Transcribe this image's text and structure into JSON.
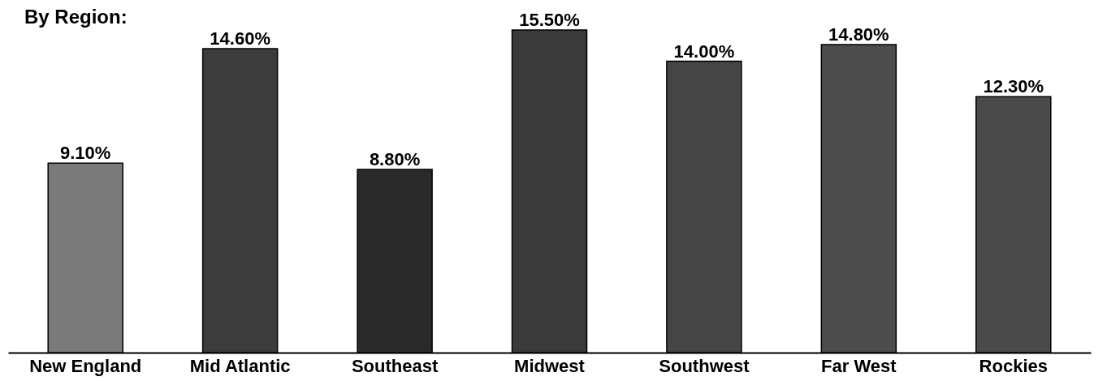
{
  "chart_data": {
    "type": "bar",
    "title": "By Region:",
    "categories": [
      "New England",
      "Mid Atlantic",
      "Southeast",
      "Midwest",
      "Southwest",
      "Far West",
      "Rockies"
    ],
    "values": [
      9.1,
      14.6,
      8.8,
      15.5,
      14.0,
      14.8,
      12.3
    ],
    "value_labels": [
      "9.10%",
      "14.60%",
      "8.80%",
      "15.50%",
      "14.00%",
      "14.80%",
      "12.30%"
    ],
    "colors": [
      "#7a7a7a",
      "#3c3c3c",
      "#2a2a2a",
      "#3a3a3a",
      "#454545",
      "#4c4c4c",
      "#4a4a4a"
    ],
    "grid": false
  }
}
